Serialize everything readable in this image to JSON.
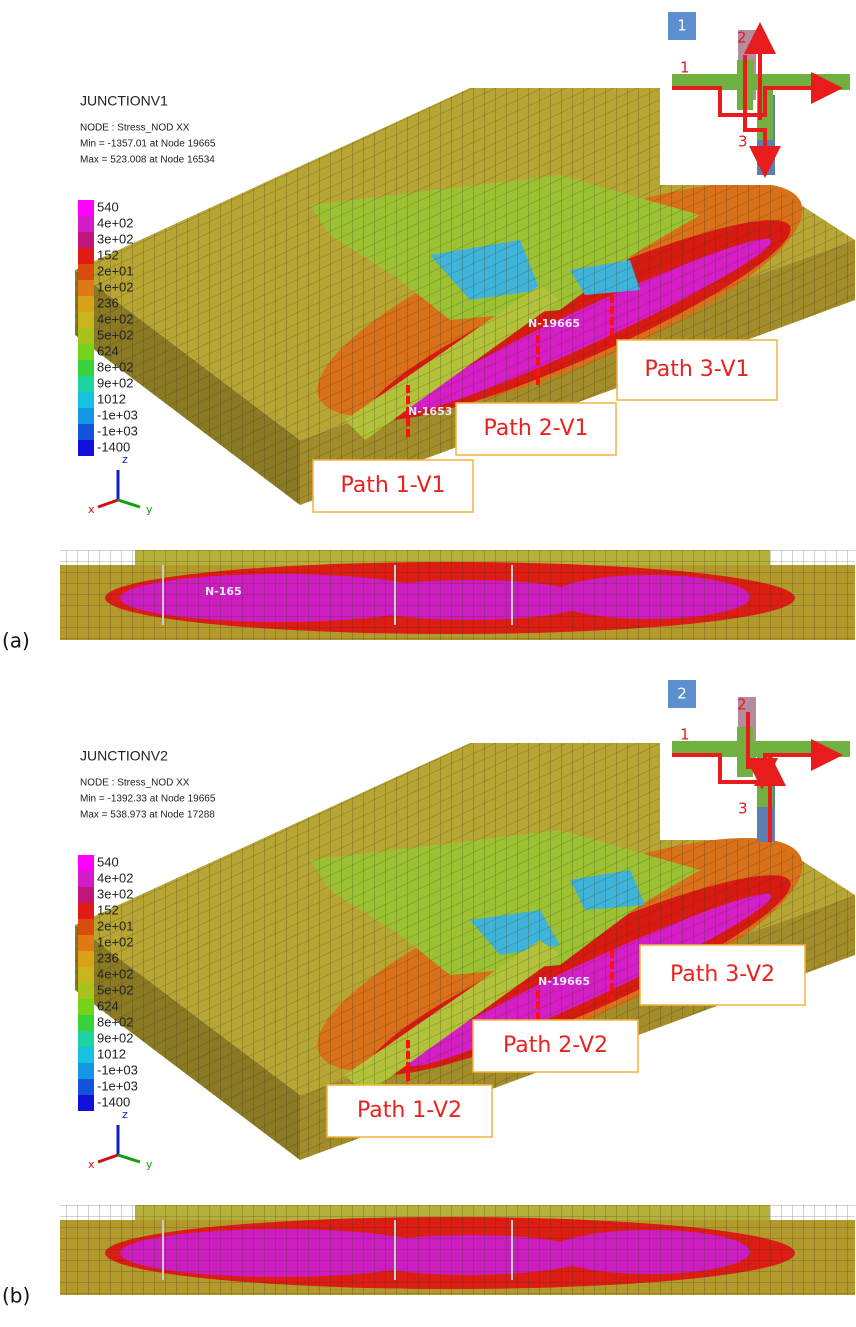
{
  "panels": [
    {
      "label": "(a)",
      "badge": "1",
      "path_numbers": [
        "1",
        "2",
        "3"
      ],
      "title": "JUNCTIONV1",
      "node_line": "NODE : Stress_NOD XX",
      "min_line": "Min = -1357.01 at Node 19665",
      "max_line": "Max = 523.008 at Node 16534",
      "node_tags": [
        "N-19665",
        "N-1653",
        "N-165"
      ],
      "paths": [
        "Path 1-V1",
        "Path 2-V1",
        "Path 3-V1"
      ]
    },
    {
      "label": "(b)",
      "badge": "2",
      "path_numbers": [
        "1",
        "2",
        "3"
      ],
      "title": "JUNCTIONV2",
      "node_line": "NODE : Stress_NOD XX",
      "min_line": "Min = -1392.33 at Node 19665",
      "max_line": "Max = 538.973 at Node 17288",
      "node_tags": [
        "N-19665"
      ],
      "paths": [
        "Path 1-V2",
        "Path 2-V2",
        "Path 3-V2"
      ]
    }
  ],
  "legend": [
    "540",
    "4e+02",
    "3e+02",
    "152",
    "2e+01",
    "1e+02",
    "236",
    "4e+02",
    "5e+02",
    "624",
    "8e+02",
    "9e+02",
    "1012",
    "-1e+03",
    "-1e+03",
    "-1400"
  ],
  "axes": [
    "z",
    "x",
    "y"
  ]
}
